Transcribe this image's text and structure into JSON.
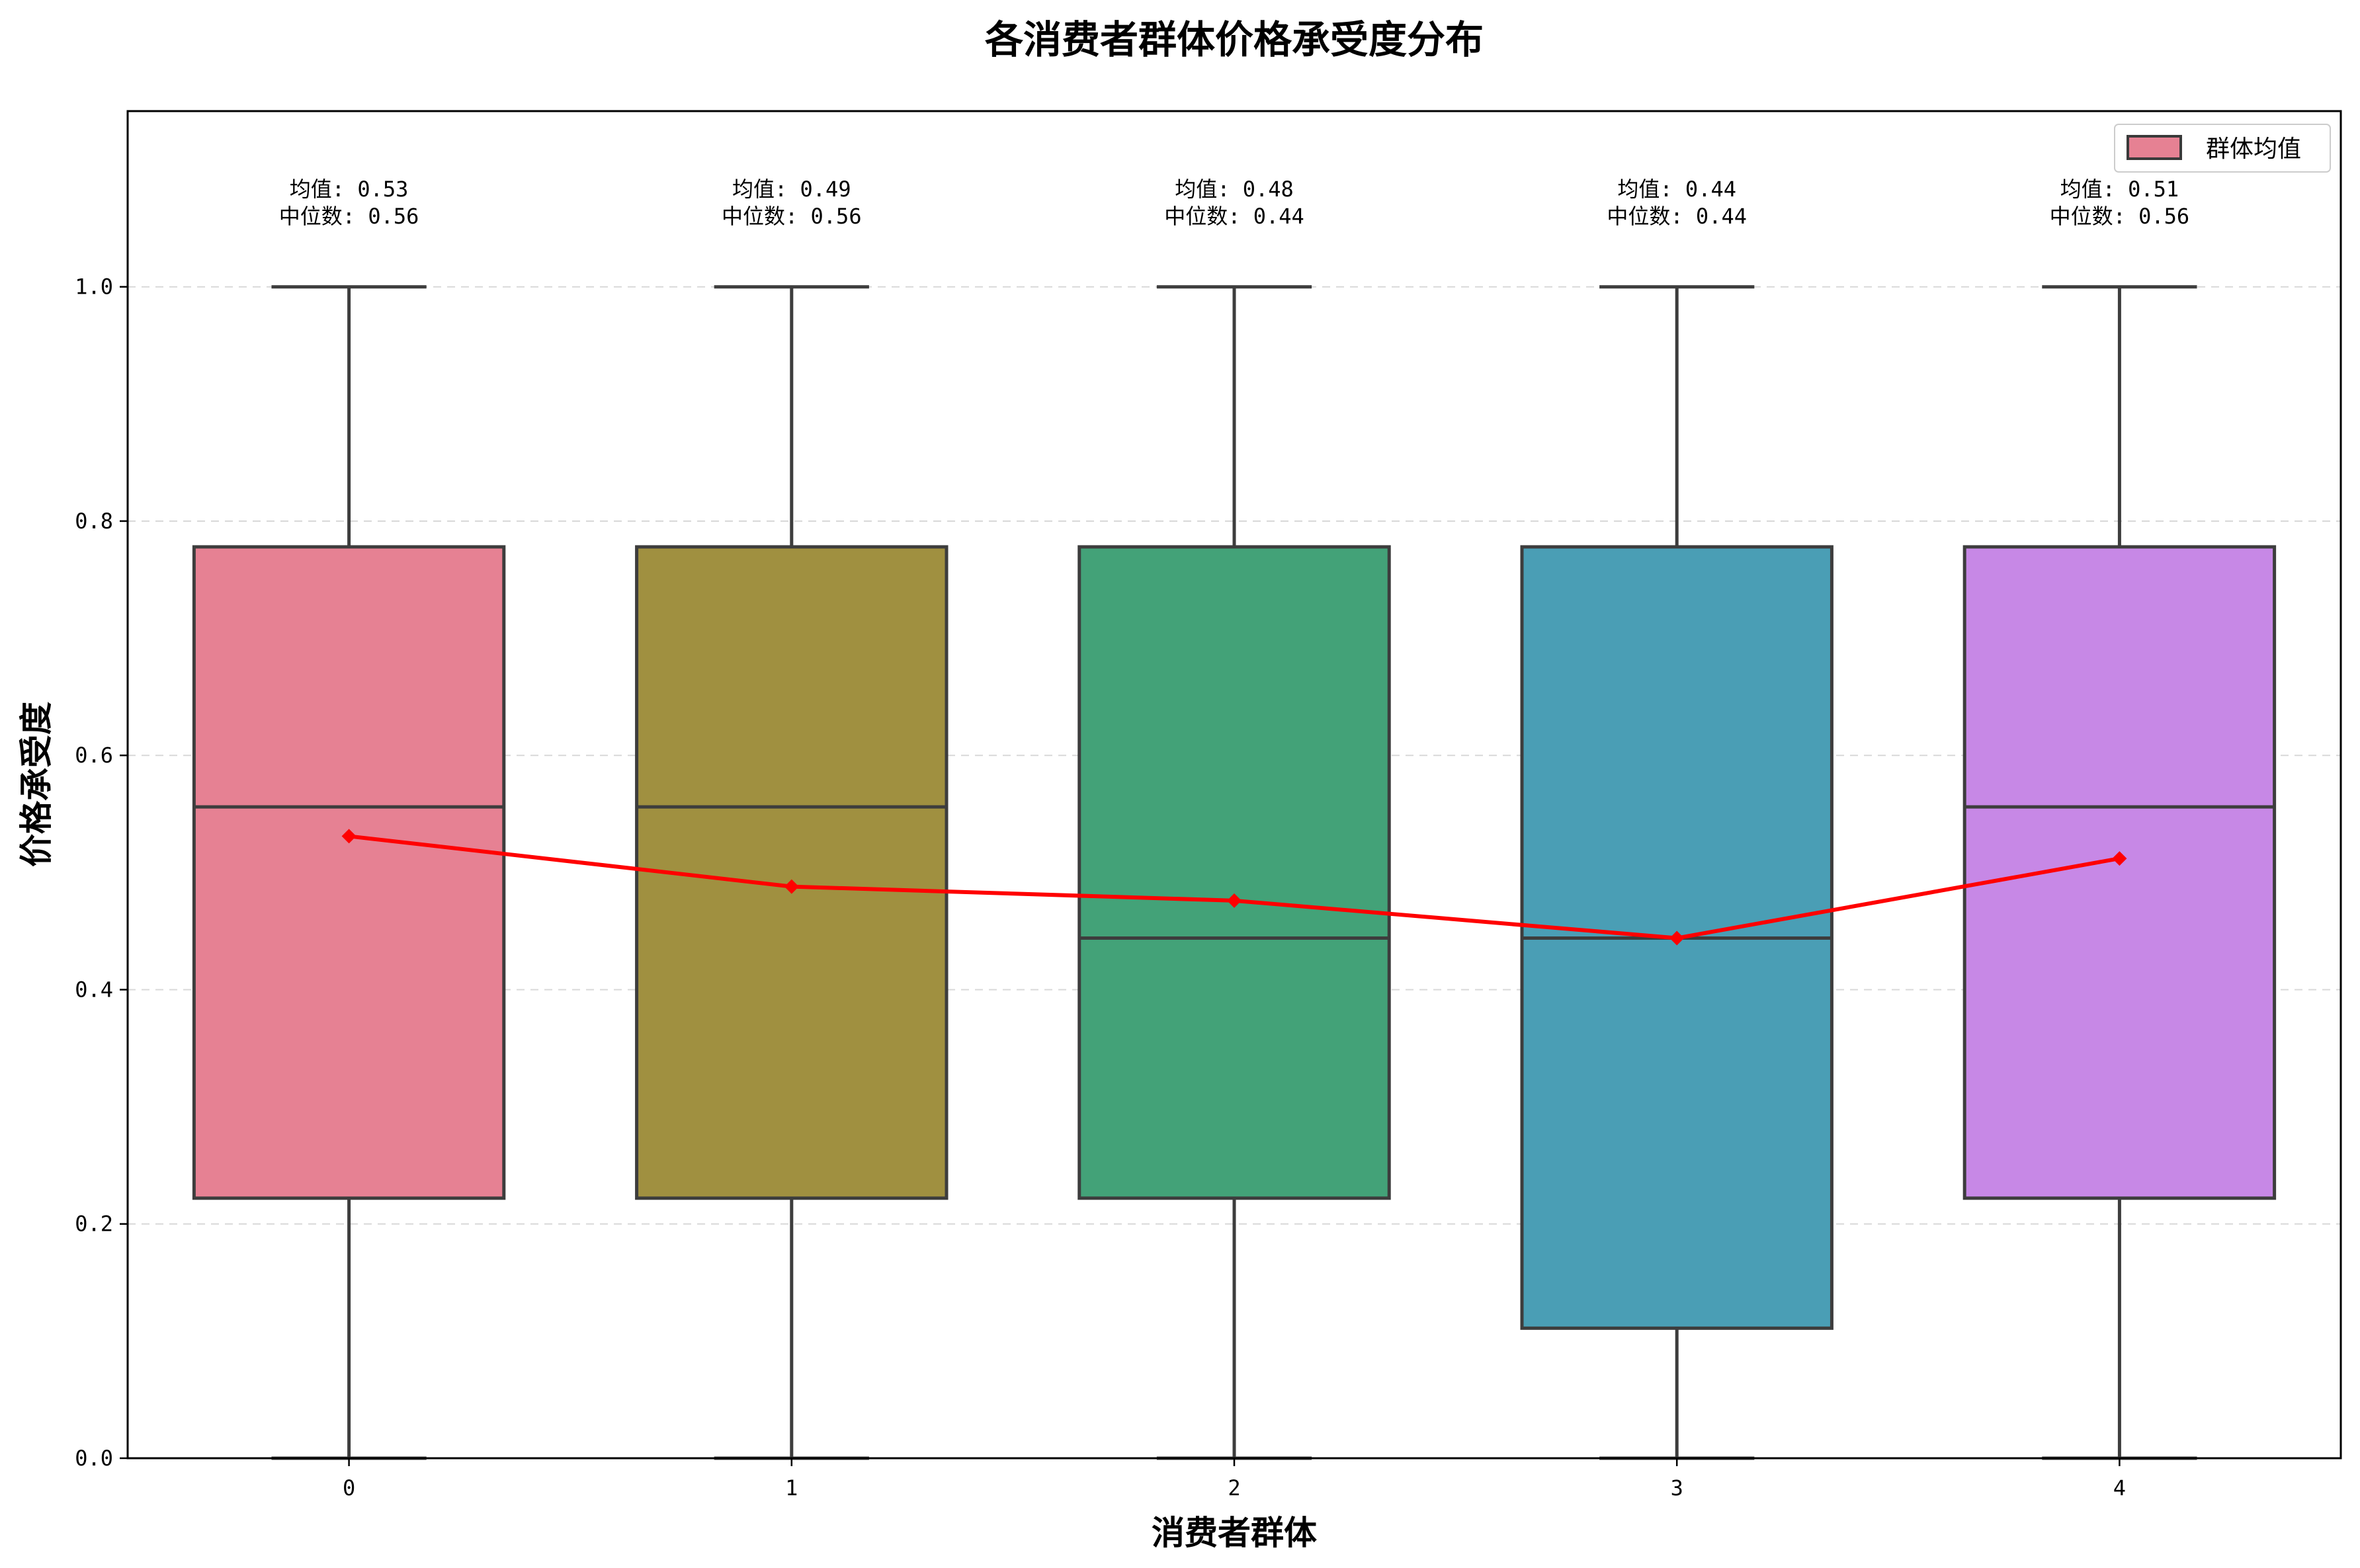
{
  "chart_data": {
    "type": "box",
    "title": "各消费者群体价格承受度分布",
    "xlabel": "消费者群体",
    "ylabel": "价格承受度",
    "ylim": [
      0,
      1.15
    ],
    "yticks": [
      "0.0",
      "0.2",
      "0.4",
      "0.6",
      "0.8",
      "1.0"
    ],
    "ytick_values": [
      0,
      0.2,
      0.4,
      0.6,
      0.8,
      1.0
    ],
    "grid": "horizontal dashed",
    "categories": [
      "0",
      "1",
      "2",
      "3",
      "4"
    ],
    "boxes": [
      {
        "group": "0",
        "min": 0.0,
        "q1": 0.222,
        "median": 0.556,
        "q3": 0.778,
        "max": 1.0,
        "mean": 0.531,
        "color": "#e68193",
        "mean_label": "均值: 0.53",
        "median_label": "中位数: 0.56"
      },
      {
        "group": "1",
        "min": 0.0,
        "q1": 0.222,
        "median": 0.556,
        "q3": 0.778,
        "max": 1.0,
        "mean": 0.488,
        "color": "#a09040",
        "mean_label": "均值: 0.49",
        "median_label": "中位数: 0.56"
      },
      {
        "group": "2",
        "min": 0.0,
        "q1": 0.222,
        "median": 0.444,
        "q3": 0.778,
        "max": 1.0,
        "mean": 0.476,
        "color": "#43a278",
        "mean_label": "均值: 0.48",
        "median_label": "中位数: 0.44"
      },
      {
        "group": "3",
        "min": 0.0,
        "q1": 0.111,
        "median": 0.444,
        "q3": 0.778,
        "max": 1.0,
        "mean": 0.444,
        "color": "#4a9eb5",
        "mean_label": "均值: 0.44",
        "median_label": "中位数: 0.44"
      },
      {
        "group": "4",
        "min": 0.0,
        "q1": 0.222,
        "median": 0.556,
        "q3": 0.778,
        "max": 1.0,
        "mean": 0.512,
        "color": "#c788e6",
        "mean_label": "均值: 0.51",
        "median_label": "中位数: 0.56"
      }
    ],
    "mean_line": {
      "color": "#ff0000",
      "values": [
        0.531,
        0.488,
        0.476,
        0.444,
        0.512
      ]
    },
    "legend": {
      "position": "top-right",
      "label": "群体均值",
      "swatch_color": "#e68193"
    }
  }
}
